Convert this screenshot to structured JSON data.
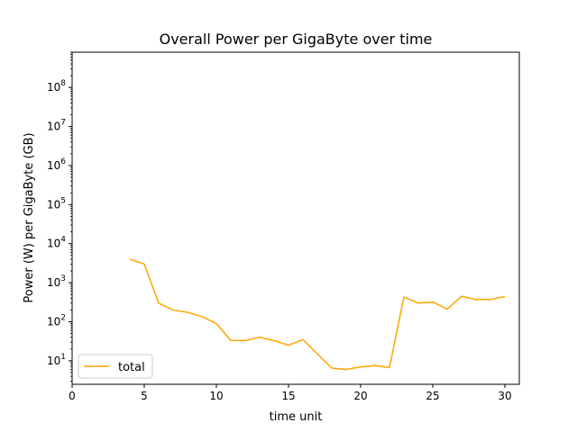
{
  "chart_data": {
    "type": "line",
    "title": "Overall Power per GigaByte over time",
    "xlabel": "time unit",
    "ylabel": "Power (W) per GigaByte (GB)",
    "xlim": [
      0,
      31
    ],
    "ylim": [
      2.5,
      800000000
    ],
    "yscale": "log",
    "x_ticks": [
      0,
      5,
      10,
      15,
      20,
      25,
      30
    ],
    "y_ticks": [
      {
        "value": 10,
        "exp": "1"
      },
      {
        "value": 100,
        "exp": "2"
      },
      {
        "value": 1000,
        "exp": "3"
      },
      {
        "value": 10000,
        "exp": "4"
      },
      {
        "value": 100000,
        "exp": "5"
      },
      {
        "value": 1000000,
        "exp": "6"
      },
      {
        "value": 10000000,
        "exp": "7"
      },
      {
        "value": 100000000,
        "exp": "8"
      }
    ],
    "y_tick_base": "10",
    "legend_position": "lower-left",
    "grid": false,
    "series": [
      {
        "name": "total",
        "color": "#ffa500",
        "x": [
          4,
          5,
          6,
          7,
          8,
          9,
          10,
          11,
          12,
          13,
          14,
          15,
          16,
          17,
          18,
          19,
          20,
          21,
          22,
          23,
          24,
          25,
          26,
          27,
          28,
          29,
          30
        ],
        "y": [
          4000,
          3000,
          300,
          200,
          175,
          135,
          90,
          33,
          33,
          40,
          33,
          25,
          35,
          15,
          6.5,
          6,
          7,
          7.5,
          6.7,
          430,
          300,
          320,
          210,
          450,
          370,
          375,
          440
        ]
      }
    ]
  }
}
